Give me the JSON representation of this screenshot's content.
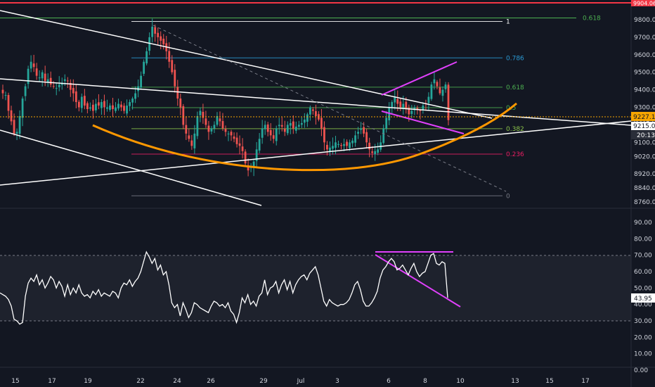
{
  "chart_data": [
    {
      "type": "candlestick",
      "title": "",
      "y_ticks": [
        "9800.00",
        "9700.00",
        "9600.00",
        "9500.00",
        "9400.00",
        "9300.00",
        "9215.00",
        "9100.00",
        "9020.00",
        "8920.00",
        "8840.00",
        "8760.00"
      ],
      "ylim": [
        8730,
        9920
      ],
      "price_tags": {
        "top_resistance": {
          "text": "9904.06",
          "value": 9904.06,
          "color": "#f23645"
        },
        "last_price": {
          "text": "9227.14",
          "value": 9227.14,
          "color": "#f7a600"
        },
        "level_9215": {
          "text": "9215.00",
          "value": 9215
        },
        "countdown": "20:13"
      },
      "fib_retracement": {
        "levels": [
          {
            "label": "1",
            "value": 9790,
            "color": "#ffffff"
          },
          {
            "label": "0.786",
            "value": 9582,
            "color": "#2a9bd6"
          },
          {
            "label": "0.618",
            "value": 9415,
            "color": "#4caf50"
          },
          {
            "label": "0.5",
            "value": 9298,
            "color": "#4caf50"
          },
          {
            "label": "0.382",
            "value": 9178,
            "color": "#8bc34a"
          },
          {
            "label": "0.236",
            "value": 9033,
            "color": "#e91e63"
          },
          {
            "label": "0",
            "value": 8795,
            "color": "#787b86"
          }
        ],
        "extra_level": {
          "label": "0.618",
          "value": 9810,
          "color": "#4caf50"
        }
      },
      "closes": [
        9380,
        9370,
        9280,
        9220,
        9150,
        9160,
        9250,
        9350,
        9420,
        9520,
        9560,
        9530,
        9480,
        9470,
        9500,
        9450,
        9460,
        9430,
        9420,
        9410,
        9430,
        9440,
        9460,
        9450,
        9400,
        9380,
        9330,
        9300,
        9360,
        9310,
        9290,
        9300,
        9280,
        9320,
        9310,
        9330,
        9300,
        9300,
        9310,
        9290,
        9300,
        9320,
        9300,
        9280,
        9310,
        9330,
        9350,
        9380,
        9420,
        9480,
        9560,
        9620,
        9700,
        9760,
        9720,
        9700,
        9680,
        9660,
        9620,
        9560,
        9500,
        9420,
        9350,
        9300,
        9200,
        9150,
        9120,
        9080,
        9150,
        9250,
        9280,
        9240,
        9200,
        9160,
        9180,
        9200,
        9250,
        9220,
        9180,
        9160,
        9150,
        9140,
        9120,
        9090,
        9080,
        9050,
        8980,
        8940,
        8960,
        8990,
        9060,
        9120,
        9180,
        9200,
        9160,
        9140,
        9120,
        9180,
        9200,
        9190,
        9160,
        9200,
        9210,
        9180,
        9190,
        9200,
        9210,
        9230,
        9260,
        9300,
        9280,
        9250,
        9230,
        9180,
        9100,
        9060,
        9070,
        9080,
        9100,
        9090,
        9080,
        9090,
        9080,
        9100,
        9110,
        9140,
        9160,
        9180,
        9150,
        9100,
        9060,
        9040,
        9050,
        9060,
        9100,
        9180,
        9240,
        9300,
        9330,
        9360,
        9320,
        9300,
        9320,
        9290,
        9260,
        9280,
        9300,
        9290,
        9280,
        9310,
        9320,
        9360,
        9430,
        9460,
        9420,
        9380,
        9400,
        9430,
        9227
      ]
    },
    {
      "type": "line",
      "title": "",
      "y_ticks": [
        "90.00",
        "80.00",
        "70.00",
        "60.00",
        "50.00",
        "40.00",
        "30.00",
        "20.00",
        "10.00",
        "0.00"
      ],
      "ylim": [
        -2,
        96
      ],
      "band": [
        30,
        70
      ],
      "current_value": "43.95",
      "values": [
        47,
        46,
        45,
        43,
        39,
        31,
        30,
        28,
        29,
        45,
        53,
        56,
        54,
        58,
        52,
        55,
        50,
        53,
        57,
        55,
        50,
        54,
        51,
        45,
        52,
        46,
        50,
        47,
        52,
        47,
        45,
        46,
        44,
        48,
        46,
        49,
        45,
        47,
        46,
        45,
        48,
        47,
        44,
        50,
        53,
        52,
        55,
        51,
        54,
        56,
        60,
        66,
        72,
        69,
        65,
        68,
        61,
        64,
        58,
        60,
        52,
        41,
        38,
        40,
        33,
        41,
        37,
        32,
        35,
        41,
        40,
        38,
        37,
        36,
        35,
        39,
        42,
        41,
        39,
        40,
        38,
        41,
        36,
        34,
        29,
        35,
        44,
        41,
        46,
        40,
        42,
        39,
        45,
        47,
        55,
        46,
        50,
        51,
        54,
        47,
        52,
        55,
        49,
        54,
        47,
        52,
        55,
        57,
        58,
        55,
        59,
        61,
        63,
        58,
        50,
        42,
        39,
        43,
        41,
        40,
        39,
        40,
        40,
        41,
        43,
        47,
        52,
        54,
        49,
        42,
        39,
        39,
        41,
        44,
        48,
        56,
        61,
        63,
        66,
        68,
        66,
        61,
        62,
        64,
        61,
        58,
        62,
        65,
        60,
        57,
        59,
        60,
        65,
        70,
        71,
        65,
        64,
        66,
        65,
        44
      ]
    }
  ],
  "x_axis": {
    "ticks": [
      "15",
      "17",
      "19",
      "22",
      "24",
      "26",
      "29",
      "Jul",
      "3",
      "6",
      "8",
      "10",
      "13",
      "15",
      "17"
    ]
  },
  "colors": {
    "background": "#131722",
    "up": "#26a69a",
    "down": "#ef5350",
    "trendline": "#ffffff",
    "curve": "#ff9800",
    "pattern": "#e040fb",
    "grid": "#2a2e39"
  }
}
